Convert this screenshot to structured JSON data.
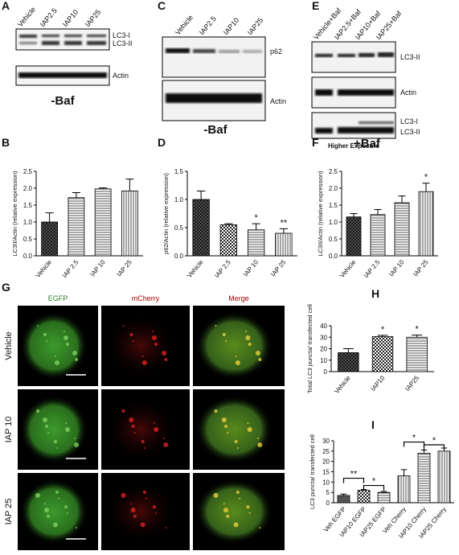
{
  "panel_letters": [
    "A",
    "B",
    "C",
    "D",
    "E",
    "F",
    "G",
    "H",
    "I"
  ],
  "blot_a": {
    "lanes": [
      "Vehicle",
      "IAP2.5",
      "IAP10",
      "IAP25"
    ],
    "bands": [
      "LC3-I",
      "LC3-II",
      "Actin"
    ],
    "caption": "-Baf"
  },
  "blot_c": {
    "lanes": [
      "Vehicle",
      "IAP2.5",
      "IAP10",
      "IAP25"
    ],
    "bands": [
      "p62",
      "Actin"
    ],
    "caption": "-Baf"
  },
  "blot_e": {
    "lanes": [
      "Vehicle+Baf",
      "IAP2.5+Baf",
      "IAP10+Baf",
      "IAP25+Baf"
    ],
    "bands": [
      "LC3-II",
      "Actin",
      "LC3-I",
      "LC3-II"
    ],
    "caption": "Higher Exposure"
  },
  "microscopy": {
    "columns": [
      "EGFP",
      "mCherry",
      "Merge"
    ],
    "rows": [
      "Vehicle",
      "IAP 10",
      "IAP 25"
    ]
  },
  "chart_data": [
    {
      "type": "bar",
      "ylabel": "LC3II/Actin (relative expression)",
      "categories": [
        "Vehicle",
        "IAP 2.5",
        "IAP 10",
        "IAP 25"
      ],
      "values": [
        1.0,
        1.72,
        1.98,
        1.92
      ],
      "errors": [
        0.27,
        0.15,
        0.03,
        0.35
      ],
      "ylim": [
        0,
        2.5
      ],
      "yticks": [
        {
          "value": 0,
          "label": "0.0"
        },
        {
          "value": 0.5,
          "label": "0.5"
        },
        {
          "value": 1,
          "label": "1.0"
        },
        {
          "value": 1.5,
          "label": "1.5"
        },
        {
          "value": 2,
          "label": "2.0"
        },
        {
          "value": 2.5,
          "label": "2.5"
        }
      ]
    },
    {
      "type": "bar",
      "ylabel": "p62/Actin (relative expression)",
      "categories": [
        "Vehicle",
        "IAP 2.5",
        "IAP 10",
        "IAP  25"
      ],
      "values": [
        1.0,
        0.55,
        0.46,
        0.4
      ],
      "errors": [
        0.15,
        0.02,
        0.11,
        0.08
      ],
      "ylim": [
        0,
        1.5
      ],
      "yticks": [
        {
          "value": 0,
          "label": "0.0"
        },
        {
          "value": 0.5,
          "label": "0.5"
        },
        {
          "value": 1,
          "label": "1.0"
        },
        {
          "value": 1.5,
          "label": "1.5"
        }
      ],
      "significance": [
        null,
        null,
        "*",
        "**"
      ]
    },
    {
      "type": "bar",
      "title": "+Baf",
      "ylabel": "LC3II/Actin (relative expression)",
      "categories": [
        "Vehicle",
        "IAP 2.5",
        "IAP 10",
        "IAP 25"
      ],
      "values": [
        1.15,
        1.22,
        1.57,
        1.9
      ],
      "errors": [
        0.1,
        0.15,
        0.2,
        0.25
      ],
      "ylim": [
        0,
        2.5
      ],
      "yticks": [
        {
          "value": 0,
          "label": "0.0"
        },
        {
          "value": 0.5,
          "label": "0.5"
        },
        {
          "value": 1,
          "label": "1.0"
        },
        {
          "value": 1.5,
          "label": "1.5"
        },
        {
          "value": 2,
          "label": "2.0"
        },
        {
          "value": 2.5,
          "label": "2.5"
        }
      ],
      "significance": [
        null,
        null,
        null,
        "*"
      ]
    },
    {
      "type": "bar",
      "ylabel": "Total LC3 puncta/ transfected cell",
      "categories": [
        "Vehicle",
        "IAP10",
        "IAP25"
      ],
      "values": [
        16.5,
        30.5,
        30
      ],
      "errors": [
        3.5,
        1.2,
        1.8
      ],
      "ylim": [
        0,
        40
      ],
      "yticks": [
        0,
        10,
        20,
        30,
        40
      ],
      "significance": [
        null,
        "*",
        "*"
      ]
    },
    {
      "type": "bar",
      "ylabel": "LC3 puncta/ transfected cell",
      "categories": [
        "Veh EGFP",
        "IAP10 EGFP",
        "IAP25 EGFP",
        "Veh Cherry",
        "IAP10 Cherry",
        "IAP25 Cherry"
      ],
      "values": [
        3.5,
        6,
        5,
        13,
        24,
        25
      ],
      "errors": [
        0.7,
        0.4,
        0.5,
        3,
        1.5,
        1.5
      ],
      "ylim": [
        0,
        30
      ],
      "yticks": [
        0,
        5,
        10,
        15,
        20,
        25,
        30
      ],
      "brackets": [
        "**",
        "*",
        "*",
        "*"
      ]
    }
  ]
}
